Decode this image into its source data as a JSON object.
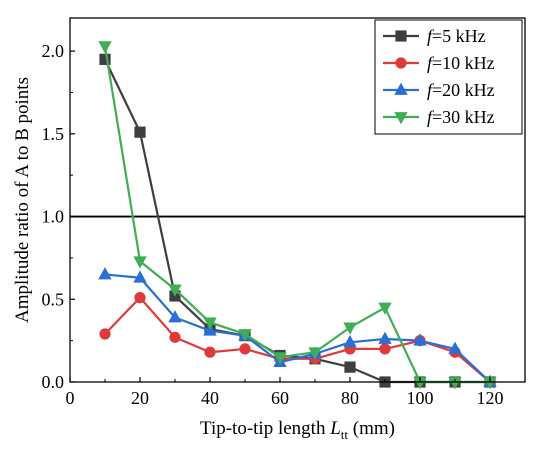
{
  "chart_data": {
    "type": "line",
    "xlabel_main": "Tip-to-tip length ",
    "xlabel_var": "L",
    "xlabel_sub": "tt",
    "xlabel_unit": " (mm)",
    "ylabel": "Amplitude ratio of A to B points",
    "xlim": [
      0,
      130
    ],
    "ylim": [
      0,
      2.2
    ],
    "xticks": [
      0,
      20,
      40,
      60,
      80,
      100,
      120
    ],
    "yticks": [
      0.0,
      0.5,
      1.0,
      1.5,
      2.0
    ],
    "xtick_labels": [
      "0",
      "20",
      "40",
      "60",
      "80",
      "100",
      "120"
    ],
    "ytick_labels": [
      "0.0",
      "0.5",
      "1.0",
      "1.5",
      "2.0"
    ],
    "reference_line": 1.0,
    "legend_position": "top-right",
    "series": [
      {
        "name_var": "f",
        "name_rest": "=5 kHz",
        "color": "#3f3f3f",
        "marker": "square",
        "x": [
          10,
          20,
          30,
          40,
          50,
          60,
          70,
          80,
          90,
          100,
          110,
          120
        ],
        "y": [
          1.95,
          1.51,
          0.52,
          0.32,
          0.28,
          0.16,
          0.14,
          0.09,
          0.0,
          0.0,
          0.0,
          0.0
        ]
      },
      {
        "name_var": "f",
        "name_rest": "=10 kHz",
        "color": "#e0393a",
        "marker": "circle",
        "x": [
          10,
          20,
          30,
          40,
          50,
          60,
          70,
          80,
          90,
          100,
          110,
          120
        ],
        "y": [
          0.29,
          0.51,
          0.27,
          0.18,
          0.2,
          0.14,
          0.14,
          0.2,
          0.2,
          0.25,
          0.18,
          0.0
        ]
      },
      {
        "name_var": "f",
        "name_rest": "=20 kHz",
        "color": "#2a6fd6",
        "marker": "triangle-up",
        "x": [
          10,
          20,
          30,
          40,
          50,
          60,
          70,
          80,
          90,
          100,
          110,
          120
        ],
        "y": [
          0.65,
          0.63,
          0.39,
          0.31,
          0.28,
          0.12,
          0.17,
          0.24,
          0.26,
          0.25,
          0.2,
          0.0
        ]
      },
      {
        "name_var": "f",
        "name_rest": "=30 kHz",
        "color": "#3fae55",
        "marker": "triangle-down",
        "x": [
          10,
          20,
          30,
          40,
          50,
          60,
          70,
          80,
          90,
          100,
          110,
          120
        ],
        "y": [
          2.03,
          0.73,
          0.56,
          0.36,
          0.29,
          0.15,
          0.18,
          0.33,
          0.45,
          0.0,
          0.0,
          0.0
        ]
      }
    ]
  }
}
